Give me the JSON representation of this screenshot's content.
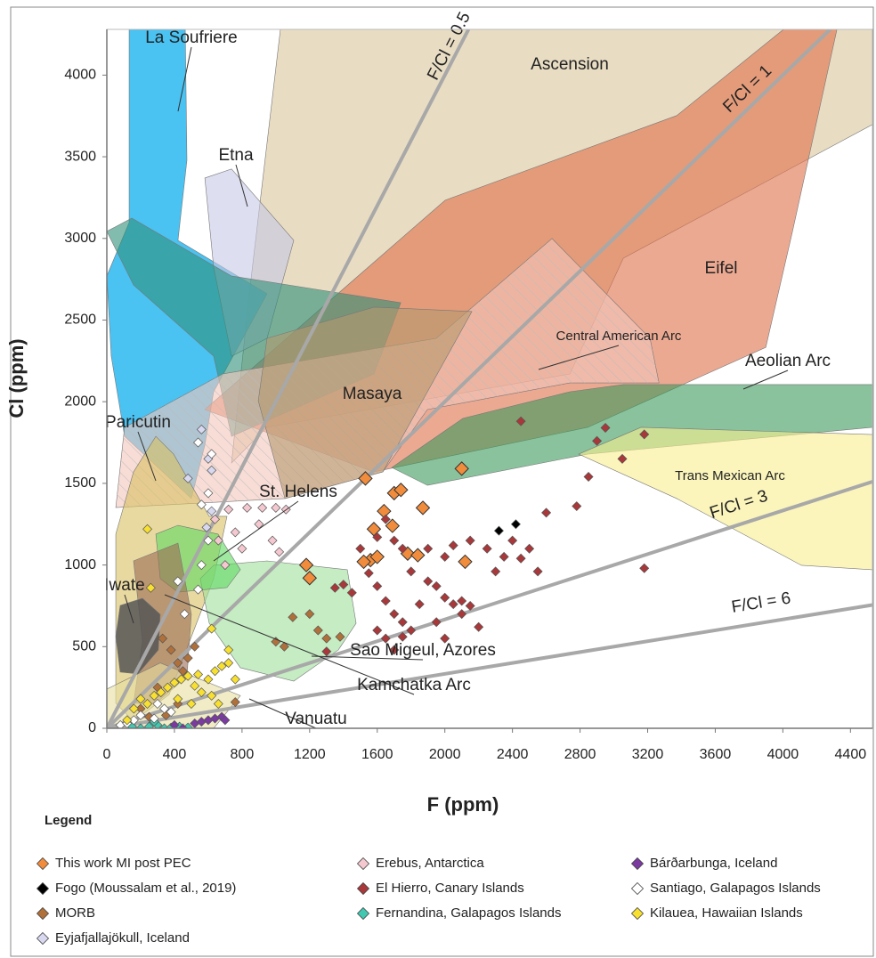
{
  "chart_data": {
    "type": "scatter",
    "x_label": "F (ppm)",
    "y_label": "Cl (ppm)",
    "legend_title": "Legend",
    "xlim": [
      0,
      4530
    ],
    "ylim": [
      0,
      4280
    ],
    "xticks": [
      0,
      400,
      800,
      1200,
      1600,
      2000,
      2400,
      2800,
      3200,
      3600,
      4000,
      4400
    ],
    "yticks": [
      0,
      500,
      1000,
      1500,
      2000,
      2500,
      3000,
      3500,
      4000
    ],
    "ratio_lines": [
      {
        "label": "F/Cl = 0.5",
        "value": 0.5
      },
      {
        "label": "F/Cl = 1",
        "value": 1
      },
      {
        "label": "F/Cl = 3",
        "value": 3
      },
      {
        "label": "F/Cl = 6",
        "value": 6
      }
    ],
    "regions": [
      {
        "name": "Ascension",
        "color": "#d8c49b",
        "x": [
          1027,
          4530,
          4530,
          3056,
          2740,
          948,
          738,
          843
        ],
        "y": [
          4280,
          4280,
          3697,
          2879,
          2170,
          1843,
          1625,
          2661
        ]
      },
      {
        "name": "La Soufriere",
        "color": "#2ab7f0",
        "x": [
          132,
          464,
          474,
          421,
          948,
          632,
          580,
          500,
          105,
          26,
          0,
          132
        ],
        "y": [
          4280,
          4280,
          3479,
          2988,
          2661,
          2061,
          1734,
          1407,
          1788,
          2279,
          2770,
          3097
        ]
      },
      {
        "name": "Etna",
        "color": "#c7c8e5",
        "x": [
          580,
          738,
          1106,
          948,
          738,
          632
        ],
        "y": [
          3370,
          3425,
          2988,
          2388,
          2279,
          2824
        ]
      },
      {
        "name": "Eifel",
        "color": "#e0704a",
        "x": [
          580,
          2002,
          3372,
          4004,
          4320,
          4057,
          3899,
          2845,
          1580
        ],
        "y": [
          1952,
          3234,
          3752,
          4280,
          4280,
          3043,
          2333,
          1843,
          1570
        ]
      },
      {
        "color": "#2f8f78",
        "x": [
          0,
          148,
          737,
          1739,
          1581,
          738,
          632,
          158
        ],
        "y": [
          3043,
          3124,
          2770,
          2606,
          2170,
          1788,
          2279,
          2715
        ]
      },
      {
        "name": "Central American Arc",
        "color": "#f4c6bb",
        "x": [
          105,
          685,
          1949,
          2634,
          3214,
          3267,
          2740,
          1897,
          1633,
          1054,
          53
        ],
        "y": [
          1843,
          2170,
          2388,
          2999,
          2388,
          2115,
          2115,
          1952,
          1570,
          1407,
          1352
        ]
      },
      {
        "name": "Masaya",
        "color": "#b59a6e",
        "x": [
          948,
          1581,
          2160,
          1897,
          1633,
          1054,
          896
        ],
        "y": [
          2388,
          2579,
          2552,
          2061,
          1570,
          1407,
          2006
        ]
      },
      {
        "name": "Aeolian Arc",
        "color": "#3a9a5a",
        "x": [
          1686,
          2107,
          2740,
          3056,
          4530,
          4530,
          2845,
          1897
        ],
        "y": [
          1597,
          1898,
          2061,
          2105,
          2105,
          1843,
          1679,
          1488
        ]
      },
      {
        "name": "Trans Mexican Arc",
        "color": "#f8ee90",
        "x": [
          2792,
          3161,
          4530,
          4530,
          4110,
          3372
        ],
        "y": [
          1679,
          1843,
          1799,
          971,
          998,
          1407
        ]
      },
      {
        "name": "Paricutin",
        "color": "#d8c060",
        "x": [
          158,
          290,
          395,
          606,
          711,
          632,
          369,
          158,
          53,
          53
        ],
        "y": [
          1570,
          1788,
          1679,
          1298,
          1298,
          916,
          207,
          44,
          153,
          1189
        ]
      },
      {
        "name": "Sao Migeul, Azores",
        "color": "#9fe09a",
        "x": [
          553,
          632,
          948,
          1423,
          1475,
          1370,
          1106,
          790,
          606
        ],
        "y": [
          916,
          998,
          1025,
          971,
          643,
          480,
          289,
          371,
          643
        ]
      },
      {
        "name": "St. Helens",
        "color": "#5fd860",
        "x": [
          290,
          421,
          658,
          790,
          711,
          421,
          316
        ],
        "y": [
          1189,
          1243,
          1189,
          971,
          862,
          834,
          916
        ]
      },
      {
        "name": "Kamchatka Arc",
        "color": "#9b6a55",
        "x": [
          158,
          421,
          500,
          474,
          290,
          158,
          211
        ],
        "y": [
          1025,
          1134,
          698,
          316,
          153,
          153,
          534
        ]
      },
      {
        "name": "Iwate",
        "color": "#555555",
        "x": [
          79,
          211,
          316,
          305,
          184,
          79,
          53
        ],
        "y": [
          752,
          796,
          698,
          480,
          333,
          344,
          562
        ]
      },
      {
        "name": "Vanuatu",
        "color": "#e8e0a0",
        "x": [
          0,
          316,
          790,
          632,
          0
        ],
        "y": [
          240,
          400,
          200,
          0,
          0
        ]
      }
    ],
    "series": [
      {
        "name": "This work MI post PEC",
        "color": "#f08c3c",
        "x": [
          1530,
          1580,
          1640,
          1700,
          1740,
          1690,
          1870,
          1560,
          1520,
          1600,
          1780,
          1840,
          2100,
          2120,
          1180,
          1200
        ],
        "y": [
          1530,
          1220,
          1330,
          1440,
          1460,
          1240,
          1350,
          1030,
          1020,
          1050,
          1070,
          1060,
          1590,
          1020,
          1000,
          920
        ]
      },
      {
        "name": "Fogo (Moussalam et al., 2019)",
        "color": "#000000",
        "x": [
          2320,
          2420
        ],
        "y": [
          1210,
          1250
        ]
      },
      {
        "name": "MORB",
        "color": "#b0703a",
        "x": [
          1200,
          1250,
          1300,
          1050,
          1000,
          1100,
          1380,
          420,
          450,
          380,
          520,
          480,
          330,
          300,
          420,
          350,
          250,
          200,
          760
        ],
        "y": [
          700,
          600,
          550,
          500,
          530,
          680,
          560,
          400,
          350,
          480,
          500,
          430,
          550,
          250,
          150,
          80,
          70,
          120,
          160
        ]
      },
      {
        "name": "Eyjafjallajökull, Iceland",
        "color": "#d8d8f0",
        "x": [
          560,
          600,
          620,
          480,
          620,
          590
        ],
        "y": [
          1830,
          1650,
          1580,
          1530,
          1330,
          1230
        ]
      },
      {
        "name": "Erebus, Antarctica",
        "color": "#f5c8d0",
        "x": [
          640,
          720,
          830,
          920,
          1000,
          1060,
          900,
          760,
          980,
          1020,
          800,
          700,
          660
        ],
        "y": [
          1280,
          1340,
          1350,
          1350,
          1350,
          1340,
          1250,
          1200,
          1150,
          1080,
          1100,
          1000,
          1150
        ]
      },
      {
        "name": "El Hierro, Canary Islands",
        "color": "#a8383a",
        "x": [
          1500,
          1600,
          1650,
          1700,
          1750,
          1800,
          1900,
          1950,
          2000,
          2050,
          2100,
          2150,
          2200,
          1900,
          2000,
          2050,
          2150,
          2250,
          2300,
          2350,
          2400,
          2450,
          2500,
          2550,
          2600,
          2780,
          2850,
          2950,
          3050,
          3180,
          3180,
          2900,
          2450,
          1550,
          1600,
          1650,
          1700,
          1750,
          1800,
          1450,
          1400,
          1350,
          1750,
          1850,
          1950,
          2000,
          2100,
          1600,
          1650,
          1700,
          1300
        ],
        "y": [
          1100,
          1170,
          1280,
          1150,
          1100,
          960,
          900,
          870,
          800,
          760,
          700,
          750,
          620,
          1100,
          1050,
          1120,
          1150,
          1100,
          960,
          1050,
          1150,
          1040,
          1100,
          960,
          1320,
          1360,
          1540,
          1840,
          1650,
          1800,
          980,
          1760,
          1880,
          950,
          870,
          780,
          700,
          650,
          600,
          830,
          880,
          860,
          560,
          760,
          650,
          550,
          780,
          600,
          550,
          480,
          470
        ]
      },
      {
        "name": "Fernandina, Galapagos Islands",
        "color": "#40c8b0",
        "x": [
          200,
          250,
          300,
          340,
          380,
          430,
          480,
          280,
          150
        ],
        "y": [
          0,
          10,
          20,
          0,
          5,
          10,
          5,
          40,
          10
        ]
      },
      {
        "name": "Bárðarbunga, Iceland",
        "color": "#7a3aa0",
        "x": [
          400,
          450,
          520,
          560,
          600,
          640,
          680,
          700
        ],
        "y": [
          20,
          0,
          30,
          40,
          50,
          60,
          70,
          50
        ]
      },
      {
        "name": "Santiago, Galapagos Islands",
        "color": "#ffffff",
        "x": [
          80,
          120,
          160,
          200,
          280,
          340,
          380,
          300,
          460,
          420,
          540,
          560,
          600,
          540,
          620,
          600,
          560
        ],
        "y": [
          20,
          30,
          50,
          80,
          60,
          120,
          100,
          150,
          700,
          900,
          850,
          1000,
          1150,
          1750,
          1680,
          1440,
          1370
        ]
      },
      {
        "name": "Kilauea, Hawaiian Islands",
        "color": "#f8e030",
        "x": [
          120,
          160,
          200,
          240,
          280,
          320,
          360,
          400,
          440,
          480,
          520,
          560,
          600,
          640,
          680,
          720,
          760,
          660,
          620,
          500,
          420,
          540,
          240,
          260,
          620,
          720
        ],
        "y": [
          50,
          120,
          180,
          150,
          200,
          220,
          250,
          280,
          300,
          320,
          260,
          220,
          300,
          350,
          380,
          400,
          300,
          150,
          200,
          150,
          180,
          330,
          1220,
          860,
          610,
          480
        ]
      }
    ]
  }
}
